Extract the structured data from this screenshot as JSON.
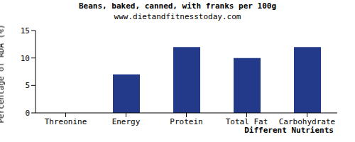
{
  "chart_data": {
    "type": "bar",
    "title": "Beans, baked, canned, with franks per 100g",
    "subtitle": "www.dietandfitnesstoday.com",
    "x_label": "Different Nutrients",
    "y_label": "Percentage of RDA (%)",
    "categories": [
      "Threonine",
      "Energy",
      "Protein",
      "Total Fat",
      "Carbohydrate"
    ],
    "values": [
      0,
      7,
      12,
      10,
      12
    ],
    "color": "#233a8a",
    "ylim": [
      0,
      15
    ],
    "yticks": [
      0,
      5,
      10,
      15
    ],
    "grid": false
  }
}
